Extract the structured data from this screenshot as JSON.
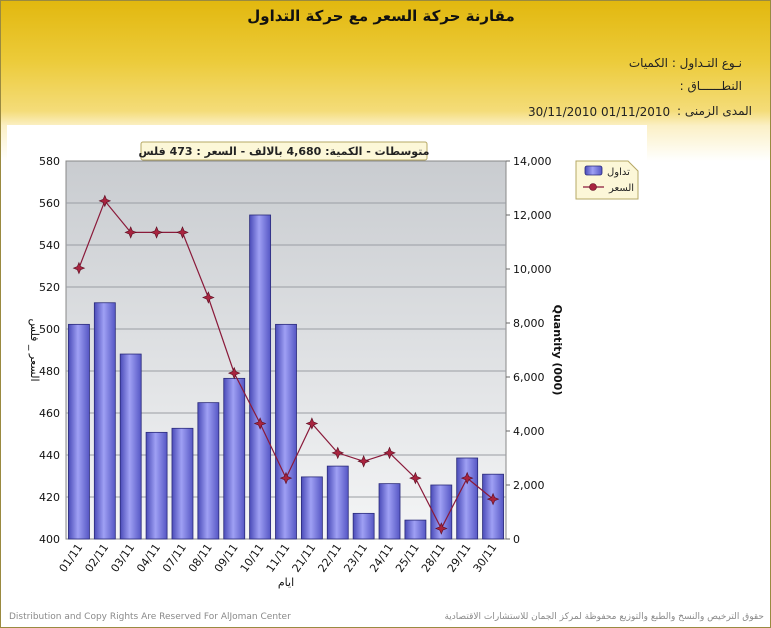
{
  "header": {
    "title": "مقارنة حركة السعر مع حركة التداول",
    "trade_type_label": "نـوع التـداول :",
    "trade_type_value": "الكميات",
    "range_label": "النطــــــاق :",
    "period_label": "المدى الزمنى :",
    "period_from": "01/11/2010",
    "period_to": "30/11/2010"
  },
  "chart_data": {
    "type": "bar",
    "title": "متوسطات - الكمية: 4,680 بالالف  -  السعر : 473 فلس",
    "xlabel": "ايام",
    "ylabel_left": "السعر _ فلس",
    "ylabel_right": "Quantity (000)",
    "categories": [
      "01/11",
      "02/11",
      "03/11",
      "04/11",
      "07/11",
      "08/11",
      "09/11",
      "10/11",
      "11/11",
      "21/11",
      "22/11",
      "23/11",
      "24/11",
      "25/11",
      "28/11",
      "29/11",
      "30/11"
    ],
    "left_axis": {
      "min": 400,
      "max": 580,
      "ticks": [
        "400",
        "420",
        "440",
        "460",
        "480",
        "500",
        "520",
        "540",
        "560",
        "580"
      ]
    },
    "right_axis": {
      "min": 0,
      "max": 14000,
      "ticks": [
        "0",
        "2,000",
        "4,000",
        "6,000",
        "8,000",
        "10,000",
        "12,000",
        "14,000"
      ]
    },
    "series": [
      {
        "name": "تداول",
        "kind": "bar",
        "axis": "right",
        "color": "#7a7be6",
        "values": [
          7950,
          8750,
          6850,
          3950,
          4100,
          5050,
          5950,
          12000,
          7950,
          2300,
          2700,
          950,
          2050,
          700,
          2000,
          3000,
          2400
        ]
      },
      {
        "name": "السعر",
        "kind": "line",
        "axis": "left",
        "color": "#8a1a3a",
        "values": [
          529,
          561,
          546,
          546,
          546,
          515,
          479,
          455,
          429,
          455,
          441,
          437,
          441,
          429,
          405,
          429,
          419
        ]
      }
    ],
    "legend_position": "top-right",
    "grid": true
  },
  "footer": {
    "left": "Distribution and Copy Rights Are Reserved For AlJoman Center",
    "right": "حقوق الترخيص والنسخ والطبع والتوزيع محفوظة لمركز الجمان للاستشارات الاقتصادية"
  }
}
